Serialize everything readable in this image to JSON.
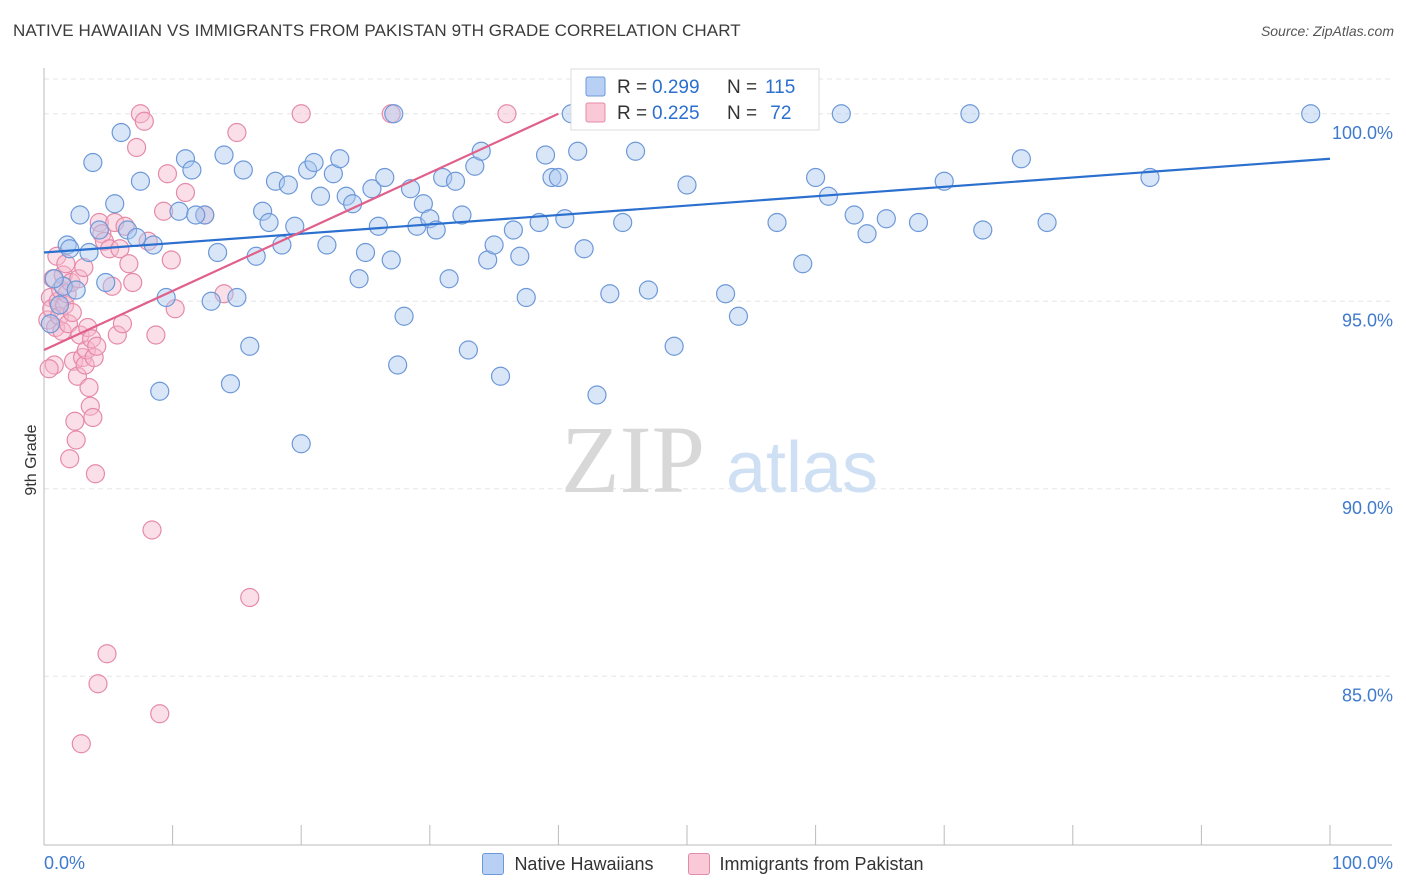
{
  "title": "NATIVE HAWAIIAN VS IMMIGRANTS FROM PAKISTAN 9TH GRADE CORRELATION CHART",
  "source": "Source: ZipAtlas.com",
  "watermark": {
    "zip": "ZIP",
    "atlas": "atlas"
  },
  "colors": {
    "blue_fill": "#a9c7f0",
    "blue_line": "#2b6fcf",
    "pink_fill": "#f6b8cb",
    "pink_line": "#e0608b",
    "axis_text": "#3f7acc",
    "grid": "#e3e3e3"
  },
  "legend_items": [
    {
      "label": "Native Hawaiians",
      "fill": "#b8d0f4",
      "stroke": "#6d98d8"
    },
    {
      "label": "Immigrants from Pakistan",
      "fill": "#f9c9d8",
      "stroke": "#e58aa8"
    }
  ],
  "stats": [
    {
      "r_label": "R =",
      "r_value": "0.299",
      "n_label": "N =",
      "n_value": "115"
    },
    {
      "r_label": "R =",
      "r_value": "0.225",
      "n_label": "N =",
      "n_value": " 72"
    }
  ],
  "chart_data": {
    "type": "scatter",
    "xlabel": "",
    "ylabel": "9th Grade",
    "xlim": [
      0,
      100
    ],
    "ylim": [
      80.5,
      100.9
    ],
    "x_tick_labels": [
      "0.0%",
      "100.0%"
    ],
    "y_ticks": [
      85,
      90,
      95,
      100
    ],
    "y_tick_labels": [
      "85.0%",
      "90.0%",
      "95.0%",
      "100.0%"
    ],
    "series": [
      {
        "name": "Native Hawaiians",
        "trend": {
          "x": [
            0,
            100
          ],
          "y": [
            96.3,
            98.8
          ]
        },
        "points": [
          [
            0.5,
            94.4
          ],
          [
            1.5,
            95.4
          ],
          [
            1.8,
            96.5
          ],
          [
            2.5,
            95.3
          ],
          [
            2.8,
            97.3
          ],
          [
            3.5,
            96.3
          ],
          [
            3.8,
            98.7
          ],
          [
            4.3,
            96.9
          ],
          [
            4.8,
            95.5
          ],
          [
            5.5,
            97.6
          ],
          [
            6.5,
            96.9
          ],
          [
            7.2,
            96.7
          ],
          [
            7.5,
            98.2
          ],
          [
            8.5,
            96.5
          ],
          [
            9.0,
            92.6
          ],
          [
            9.5,
            95.1
          ],
          [
            10.5,
            97.4
          ],
          [
            11.0,
            98.8
          ],
          [
            11.5,
            98.5
          ],
          [
            12.5,
            97.3
          ],
          [
            13.0,
            95.0
          ],
          [
            13.5,
            96.3
          ],
          [
            14.0,
            98.9
          ],
          [
            14.5,
            92.8
          ],
          [
            15.0,
            95.1
          ],
          [
            15.5,
            98.5
          ],
          [
            16.0,
            93.8
          ],
          [
            16.5,
            96.2
          ],
          [
            17.0,
            97.4
          ],
          [
            17.5,
            97.1
          ],
          [
            18.0,
            98.2
          ],
          [
            18.5,
            96.5
          ],
          [
            19.0,
            98.1
          ],
          [
            19.5,
            97.0
          ],
          [
            20.0,
            91.2
          ],
          [
            20.5,
            98.5
          ],
          [
            21.0,
            98.7
          ],
          [
            21.5,
            97.8
          ],
          [
            22.0,
            96.5
          ],
          [
            22.5,
            98.4
          ],
          [
            23.0,
            98.8
          ],
          [
            23.5,
            97.8
          ],
          [
            24.0,
            97.6
          ],
          [
            24.5,
            95.6
          ],
          [
            25.0,
            96.3
          ],
          [
            25.5,
            98.0
          ],
          [
            26.0,
            97.0
          ],
          [
            26.5,
            98.3
          ],
          [
            27.0,
            96.1
          ],
          [
            27.5,
            93.3
          ],
          [
            28.0,
            94.6
          ],
          [
            28.5,
            98.0
          ],
          [
            29.0,
            97.0
          ],
          [
            29.5,
            97.6
          ],
          [
            30.0,
            97.2
          ],
          [
            30.5,
            96.9
          ],
          [
            31.0,
            98.3
          ],
          [
            31.5,
            95.6
          ],
          [
            32.0,
            98.2
          ],
          [
            32.5,
            97.3
          ],
          [
            33.0,
            93.7
          ],
          [
            33.5,
            98.6
          ],
          [
            34.0,
            99.0
          ],
          [
            34.5,
            96.1
          ],
          [
            35.0,
            96.5
          ],
          [
            35.5,
            93.0
          ],
          [
            36.5,
            96.9
          ],
          [
            37.0,
            96.2
          ],
          [
            37.5,
            95.1
          ],
          [
            38.5,
            97.1
          ],
          [
            39.0,
            98.9
          ],
          [
            39.5,
            98.3
          ],
          [
            40.0,
            98.3
          ],
          [
            40.5,
            97.2
          ],
          [
            41.0,
            100.0
          ],
          [
            41.5,
            99.0
          ],
          [
            42.0,
            96.4
          ],
          [
            43.0,
            92.5
          ],
          [
            43.5,
            100.0
          ],
          [
            44.0,
            95.2
          ],
          [
            45.0,
            97.1
          ],
          [
            46.0,
            99.0
          ],
          [
            47.0,
            95.3
          ],
          [
            48.0,
            100.0
          ],
          [
            49.0,
            93.8
          ],
          [
            50.0,
            98.1
          ],
          [
            51.5,
            100.0
          ],
          [
            53.0,
            95.2
          ],
          [
            54.0,
            94.6
          ],
          [
            55.0,
            100.0
          ],
          [
            57.0,
            97.1
          ],
          [
            58.0,
            100.0
          ],
          [
            59.0,
            96.0
          ],
          [
            60.0,
            98.3
          ],
          [
            61.0,
            97.8
          ],
          [
            62.0,
            100.0
          ],
          [
            63.0,
            97.3
          ],
          [
            64.0,
            96.8
          ],
          [
            65.5,
            97.2
          ],
          [
            68.0,
            97.1
          ],
          [
            70.0,
            98.2
          ],
          [
            72.0,
            100.0
          ],
          [
            73.0,
            96.9
          ],
          [
            76.0,
            98.8
          ],
          [
            78.0,
            97.1
          ],
          [
            86.0,
            98.3
          ],
          [
            98.5,
            100.0
          ],
          [
            0.8,
            95.6
          ],
          [
            1.2,
            94.9
          ],
          [
            2.0,
            96.4
          ],
          [
            6.0,
            99.5
          ],
          [
            11.8,
            97.3
          ],
          [
            27.2,
            100.0
          ]
        ]
      },
      {
        "name": "Immigrants from Pakistan",
        "trend": {
          "x": [
            0,
            40
          ],
          "y": [
            93.7,
            100.0
          ]
        },
        "points": [
          [
            0.3,
            94.5
          ],
          [
            0.5,
            95.1
          ],
          [
            0.6,
            94.8
          ],
          [
            0.7,
            95.6
          ],
          [
            0.8,
            93.3
          ],
          [
            0.9,
            94.3
          ],
          [
            1.0,
            96.2
          ],
          [
            1.1,
            95.0
          ],
          [
            1.2,
            94.6
          ],
          [
            1.3,
            95.3
          ],
          [
            1.4,
            94.2
          ],
          [
            1.5,
            95.7
          ],
          [
            1.6,
            94.9
          ],
          [
            1.7,
            96.0
          ],
          [
            1.8,
            95.2
          ],
          [
            1.9,
            94.4
          ],
          [
            2.0,
            90.8
          ],
          [
            2.1,
            95.5
          ],
          [
            2.2,
            94.7
          ],
          [
            2.3,
            93.4
          ],
          [
            2.4,
            91.8
          ],
          [
            2.5,
            91.3
          ],
          [
            2.6,
            93.0
          ],
          [
            2.7,
            95.6
          ],
          [
            2.8,
            94.1
          ],
          [
            2.9,
            83.2
          ],
          [
            3.0,
            93.5
          ],
          [
            3.1,
            95.9
          ],
          [
            3.2,
            93.3
          ],
          [
            3.3,
            93.7
          ],
          [
            3.4,
            94.3
          ],
          [
            3.5,
            92.7
          ],
          [
            3.6,
            92.2
          ],
          [
            3.7,
            94.0
          ],
          [
            3.8,
            91.9
          ],
          [
            3.9,
            93.5
          ],
          [
            4.0,
            90.4
          ],
          [
            4.1,
            93.8
          ],
          [
            4.2,
            84.8
          ],
          [
            4.3,
            97.1
          ],
          [
            4.5,
            96.8
          ],
          [
            4.7,
            96.6
          ],
          [
            4.9,
            85.6
          ],
          [
            5.1,
            96.4
          ],
          [
            5.3,
            95.4
          ],
          [
            5.5,
            97.1
          ],
          [
            5.7,
            94.1
          ],
          [
            5.9,
            96.4
          ],
          [
            6.1,
            94.4
          ],
          [
            6.3,
            97.0
          ],
          [
            6.6,
            96.0
          ],
          [
            6.9,
            95.5
          ],
          [
            7.2,
            99.1
          ],
          [
            7.5,
            100.0
          ],
          [
            7.8,
            99.8
          ],
          [
            8.1,
            96.6
          ],
          [
            8.4,
            88.9
          ],
          [
            8.7,
            94.1
          ],
          [
            9.0,
            84.0
          ],
          [
            9.3,
            97.4
          ],
          [
            9.6,
            98.4
          ],
          [
            9.9,
            96.1
          ],
          [
            10.2,
            94.8
          ],
          [
            11.0,
            97.9
          ],
          [
            12.5,
            97.3
          ],
          [
            14.0,
            95.2
          ],
          [
            15.0,
            99.5
          ],
          [
            16.0,
            87.1
          ],
          [
            20.0,
            100.0
          ],
          [
            27.0,
            100.0
          ],
          [
            36.0,
            100.0
          ],
          [
            0.4,
            93.2
          ]
        ]
      }
    ]
  }
}
